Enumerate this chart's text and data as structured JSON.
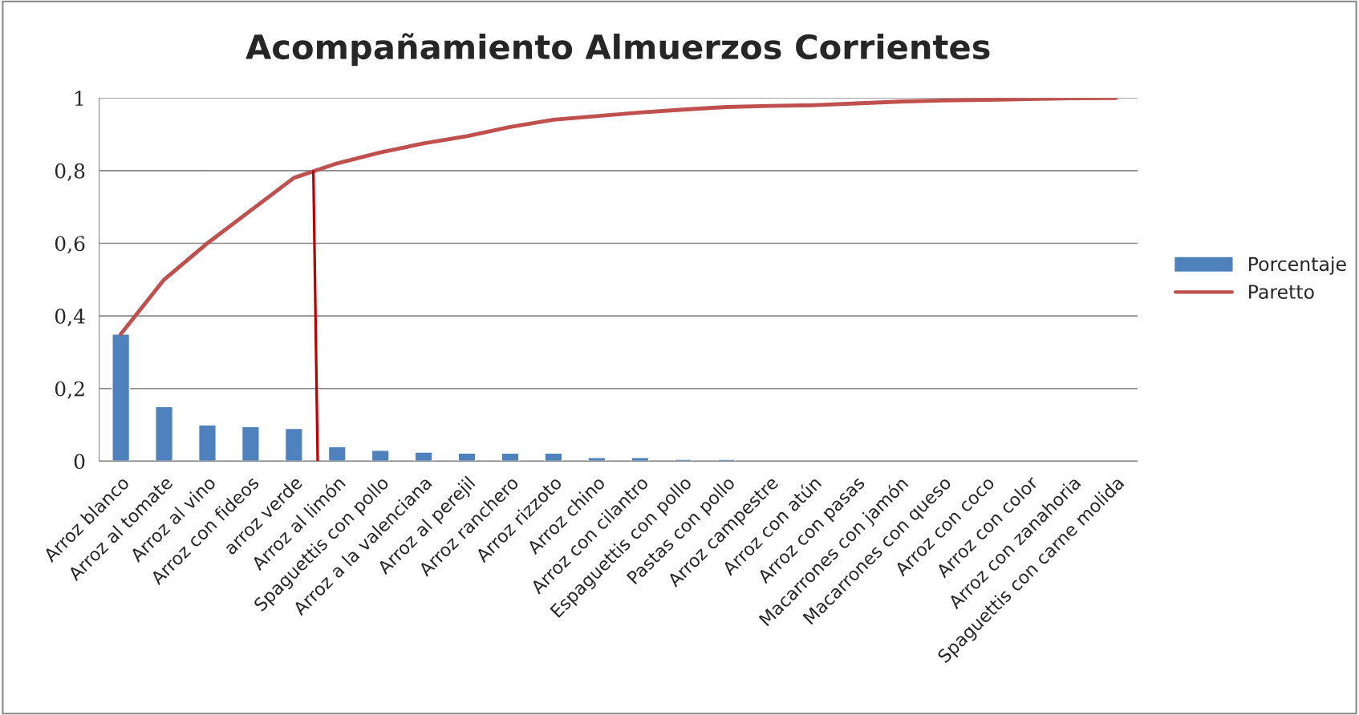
{
  "chart_data": {
    "type": "bar",
    "title": "Acompañamiento Almuerzos Corrientes",
    "categories": [
      "Arroz blanco",
      "Arroz al tomate",
      "Arroz al vino",
      "Arroz con fideos",
      "arroz verde",
      "Arroz al limón",
      "Spaguettis con pollo",
      "Arroz a la valenciana",
      "Arroz al perejil",
      "Arroz ranchero",
      "Arroz rizzoto",
      "Arroz chino",
      "Arroz con cilantro",
      "Espaguettis con pollo",
      "Pastas con pollo",
      "Arroz campestre",
      "Arroz con atún",
      "Arroz con pasas",
      "Macarrones con jamón",
      "Macarrones con queso",
      "Arroz con coco",
      "Arroz con color",
      "Arroz con zanahoria",
      "Spaguettis con carne molida"
    ],
    "series": [
      {
        "name": "Porcentaje",
        "color": "#4f81bd",
        "values": [
          0.35,
          0.15,
          0.1,
          0.095,
          0.09,
          0.04,
          0.03,
          0.025,
          0.022,
          0.022,
          0.022,
          0.01,
          0.01,
          0.005,
          0.005,
          null,
          null,
          null,
          null,
          null,
          null,
          null,
          null,
          null
        ]
      },
      {
        "name": "Paretto",
        "type": "line",
        "color": "#c0504d",
        "values": [
          0.35,
          0.5,
          0.6,
          0.69,
          0.78,
          0.82,
          0.85,
          0.875,
          0.895,
          0.92,
          0.94,
          0.95,
          0.96,
          0.968,
          0.975,
          0.978,
          0.98,
          0.985,
          0.99,
          0.993,
          0.995,
          0.997,
          0.999,
          1.0
        ]
      }
    ],
    "ylim": [
      0,
      1
    ],
    "yticks": [
      {
        "value": 0,
        "label": "0"
      },
      {
        "value": 0.2,
        "label": "0,2"
      },
      {
        "value": 0.4,
        "label": "0,4"
      },
      {
        "value": 0.6,
        "label": "0,6"
      },
      {
        "value": 0.8,
        "label": "0,8"
      },
      {
        "value": 1,
        "label": "1"
      }
    ],
    "grid": "y",
    "legend": "right"
  }
}
